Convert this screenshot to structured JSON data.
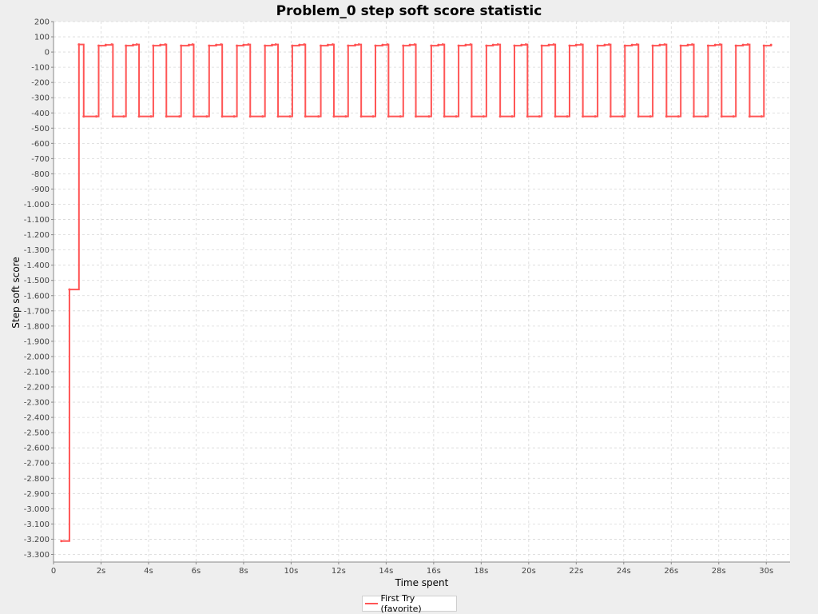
{
  "chart_data": {
    "type": "line",
    "title": "Problem_0 step soft score statistic",
    "xlabel": "Time spent",
    "ylabel": "Step soft score",
    "xlim": [
      0,
      31
    ],
    "ylim": [
      -3350,
      200
    ],
    "x_ticks": [
      {
        "value": 0,
        "label": "0"
      },
      {
        "value": 2,
        "label": "2s"
      },
      {
        "value": 4,
        "label": "4s"
      },
      {
        "value": 6,
        "label": "6s"
      },
      {
        "value": 8,
        "label": "8s"
      },
      {
        "value": 10,
        "label": "10s"
      },
      {
        "value": 12,
        "label": "12s"
      },
      {
        "value": 14,
        "label": "14s"
      },
      {
        "value": 16,
        "label": "16s"
      },
      {
        "value": 18,
        "label": "18s"
      },
      {
        "value": 20,
        "label": "20s"
      },
      {
        "value": 22,
        "label": "22s"
      },
      {
        "value": 24,
        "label": "24s"
      },
      {
        "value": 26,
        "label": "26s"
      },
      {
        "value": 28,
        "label": "28s"
      },
      {
        "value": 30,
        "label": "30s"
      }
    ],
    "y_ticks": [
      {
        "value": 200,
        "label": "200"
      },
      {
        "value": 100,
        "label": "100"
      },
      {
        "value": 0,
        "label": "0"
      },
      {
        "value": -100,
        "label": "-100"
      },
      {
        "value": -200,
        "label": "-200"
      },
      {
        "value": -300,
        "label": "-300"
      },
      {
        "value": -400,
        "label": "-400"
      },
      {
        "value": -500,
        "label": "-500"
      },
      {
        "value": -600,
        "label": "-600"
      },
      {
        "value": -700,
        "label": "-700"
      },
      {
        "value": -800,
        "label": "-800"
      },
      {
        "value": -900,
        "label": "-900"
      },
      {
        "value": -1000,
        "label": "-1.000"
      },
      {
        "value": -1100,
        "label": "-1.100"
      },
      {
        "value": -1200,
        "label": "-1.200"
      },
      {
        "value": -1300,
        "label": "-1.300"
      },
      {
        "value": -1400,
        "label": "-1.400"
      },
      {
        "value": -1500,
        "label": "-1.500"
      },
      {
        "value": -1600,
        "label": "-1.600"
      },
      {
        "value": -1700,
        "label": "-1.700"
      },
      {
        "value": -1800,
        "label": "-1.800"
      },
      {
        "value": -1900,
        "label": "-1.900"
      },
      {
        "value": -2000,
        "label": "-2.000"
      },
      {
        "value": -2100,
        "label": "-2.100"
      },
      {
        "value": -2200,
        "label": "-2.200"
      },
      {
        "value": -2300,
        "label": "-2.300"
      },
      {
        "value": -2400,
        "label": "-2.400"
      },
      {
        "value": -2500,
        "label": "-2.500"
      },
      {
        "value": -2600,
        "label": "-2.600"
      },
      {
        "value": -2700,
        "label": "-2.700"
      },
      {
        "value": -2800,
        "label": "-2.800"
      },
      {
        "value": -2900,
        "label": "-2.900"
      },
      {
        "value": -3000,
        "label": "-3.000"
      },
      {
        "value": -3100,
        "label": "-3.100"
      },
      {
        "value": -3200,
        "label": "-3.200"
      },
      {
        "value": -3300,
        "label": "-3.300"
      }
    ],
    "grid": true,
    "legend_position": "bottom",
    "series": [
      {
        "name": "First Try (favorite)",
        "color": "#ff5555",
        "step": true,
        "points": [
          [
            0.33,
            -3212
          ],
          [
            0.67,
            -1560
          ],
          [
            1.07,
            50
          ],
          [
            1.27,
            -423
          ],
          [
            1.8,
            -423
          ],
          [
            1.9,
            42
          ],
          [
            2.2,
            47
          ],
          [
            2.45,
            50
          ],
          [
            2.5,
            -423
          ],
          [
            2.95,
            -423
          ],
          [
            3.05,
            42
          ],
          [
            3.35,
            47
          ],
          [
            3.5,
            50
          ],
          [
            3.6,
            -423
          ],
          [
            4.1,
            -423
          ],
          [
            4.2,
            42
          ],
          [
            4.5,
            47
          ],
          [
            4.7,
            50
          ],
          [
            4.75,
            -423
          ],
          [
            5.3,
            -423
          ],
          [
            5.37,
            42
          ],
          [
            5.7,
            47
          ],
          [
            5.85,
            50
          ],
          [
            5.9,
            -423
          ],
          [
            6.45,
            -423
          ],
          [
            6.55,
            42
          ],
          [
            6.85,
            47
          ],
          [
            7.05,
            50
          ],
          [
            7.1,
            -423
          ],
          [
            7.6,
            -423
          ],
          [
            7.72,
            42
          ],
          [
            8.0,
            47
          ],
          [
            8.2,
            50
          ],
          [
            8.28,
            -423
          ],
          [
            8.8,
            -423
          ],
          [
            8.9,
            42
          ],
          [
            9.2,
            47
          ],
          [
            9.35,
            50
          ],
          [
            9.45,
            -423
          ],
          [
            9.95,
            -423
          ],
          [
            10.05,
            42
          ],
          [
            10.35,
            47
          ],
          [
            10.55,
            50
          ],
          [
            10.6,
            -423
          ],
          [
            11.15,
            -423
          ],
          [
            11.25,
            42
          ],
          [
            11.55,
            47
          ],
          [
            11.75,
            50
          ],
          [
            11.8,
            -423
          ],
          [
            12.3,
            -423
          ],
          [
            12.4,
            42
          ],
          [
            12.7,
            47
          ],
          [
            12.85,
            50
          ],
          [
            12.95,
            -423
          ],
          [
            13.45,
            -423
          ],
          [
            13.55,
            42
          ],
          [
            13.85,
            47
          ],
          [
            14.05,
            50
          ],
          [
            14.1,
            -423
          ],
          [
            14.6,
            -423
          ],
          [
            14.72,
            42
          ],
          [
            15.0,
            47
          ],
          [
            15.2,
            50
          ],
          [
            15.25,
            -423
          ],
          [
            15.8,
            -423
          ],
          [
            15.9,
            42
          ],
          [
            16.2,
            47
          ],
          [
            16.38,
            50
          ],
          [
            16.45,
            -423
          ],
          [
            16.95,
            -423
          ],
          [
            17.05,
            42
          ],
          [
            17.35,
            47
          ],
          [
            17.55,
            50
          ],
          [
            17.6,
            -423
          ],
          [
            18.1,
            -423
          ],
          [
            18.22,
            42
          ],
          [
            18.5,
            47
          ],
          [
            18.7,
            50
          ],
          [
            18.8,
            -423
          ],
          [
            19.3,
            -423
          ],
          [
            19.4,
            42
          ],
          [
            19.7,
            47
          ],
          [
            19.88,
            50
          ],
          [
            19.95,
            -423
          ],
          [
            20.45,
            -423
          ],
          [
            20.55,
            42
          ],
          [
            20.85,
            47
          ],
          [
            21.05,
            50
          ],
          [
            21.12,
            -423
          ],
          [
            21.62,
            -423
          ],
          [
            21.72,
            42
          ],
          [
            22.0,
            47
          ],
          [
            22.2,
            50
          ],
          [
            22.28,
            -423
          ],
          [
            22.8,
            -423
          ],
          [
            22.9,
            42
          ],
          [
            23.2,
            47
          ],
          [
            23.38,
            50
          ],
          [
            23.45,
            -423
          ],
          [
            23.95,
            -423
          ],
          [
            24.05,
            42
          ],
          [
            24.35,
            47
          ],
          [
            24.55,
            50
          ],
          [
            24.62,
            -423
          ],
          [
            25.12,
            -423
          ],
          [
            25.22,
            42
          ],
          [
            25.52,
            47
          ],
          [
            25.72,
            50
          ],
          [
            25.8,
            -423
          ],
          [
            26.3,
            -423
          ],
          [
            26.4,
            42
          ],
          [
            26.7,
            47
          ],
          [
            26.88,
            50
          ],
          [
            26.95,
            -423
          ],
          [
            27.45,
            -423
          ],
          [
            27.55,
            42
          ],
          [
            27.85,
            47
          ],
          [
            28.05,
            50
          ],
          [
            28.12,
            -423
          ],
          [
            28.62,
            -423
          ],
          [
            28.72,
            42
          ],
          [
            29.02,
            47
          ],
          [
            29.22,
            50
          ],
          [
            29.3,
            -423
          ],
          [
            29.8,
            -423
          ],
          [
            29.9,
            42
          ],
          [
            30.2,
            47
          ]
        ]
      }
    ]
  }
}
